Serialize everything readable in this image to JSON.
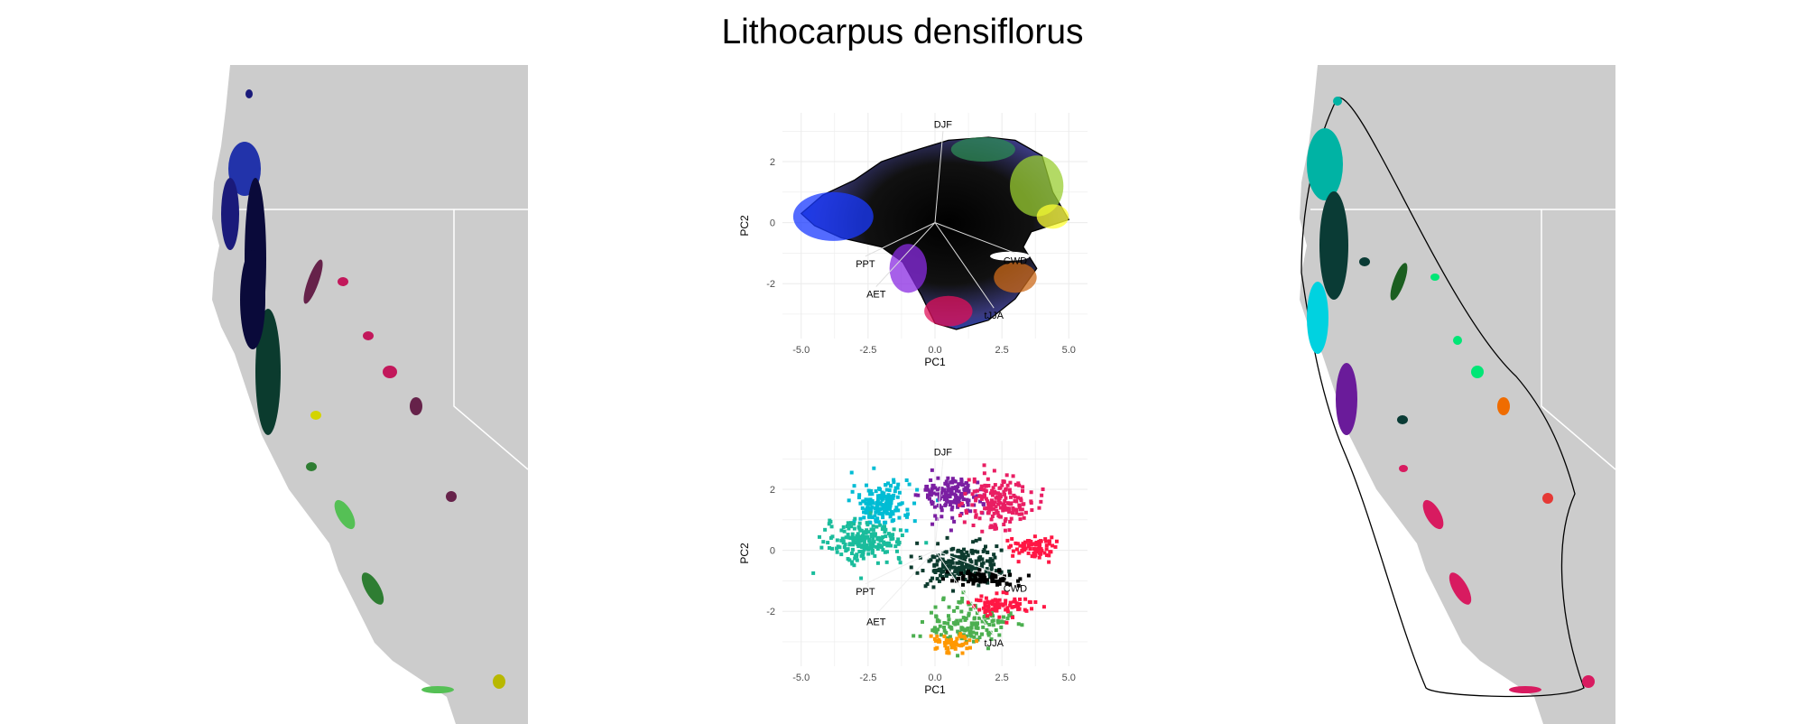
{
  "title": "Lithocarpus densiflorus",
  "colors": {
    "land": "#cccccc",
    "border": "#ffffff",
    "grid": "#ebebeb",
    "axis_text": "#4d4d4d"
  },
  "chart_data": [
    {
      "type": "map",
      "panel": "left-map",
      "description_series": "occurrence patches colored by climate PCA",
      "patches": [
        {
          "color": "#1a1a7a"
        },
        {
          "color": "#2233aa"
        },
        {
          "color": "#0a0a3a"
        },
        {
          "color": "#66224a"
        },
        {
          "color": "#c2185b"
        },
        {
          "color": "#0b3b2e"
        },
        {
          "color": "#d4d400"
        },
        {
          "color": "#2e7d32"
        },
        {
          "color": "#55c055"
        },
        {
          "color": "#b8b800"
        }
      ]
    },
    {
      "type": "biplot-hull",
      "panel": "pca-top",
      "xlabel": "PC1",
      "ylabel": "PC2",
      "xticks": [
        "-5.0",
        "-2.5",
        "0.0",
        "2.5",
        "5.0"
      ],
      "yticks": [
        "2",
        "0",
        "-2"
      ],
      "xlim": [
        -5.7,
        5.7
      ],
      "ylim": [
        -3.8,
        3.6
      ],
      "loadings": [
        {
          "label": "DJF",
          "x": 0.3,
          "y": 3.0
        },
        {
          "label": "CWD",
          "x": 3.0,
          "y": -1.0
        },
        {
          "label": "PPT",
          "x": -2.6,
          "y": -1.1
        },
        {
          "label": "AET",
          "x": -2.2,
          "y": -2.1
        },
        {
          "label": "tJJA",
          "x": 2.2,
          "y": -2.8
        }
      ]
    },
    {
      "type": "scatter",
      "panel": "pca-bottom",
      "xlabel": "PC1",
      "ylabel": "PC2",
      "xticks": [
        "-5.0",
        "-2.5",
        "0.0",
        "2.5",
        "5.0"
      ],
      "yticks": [
        "2",
        "0",
        "-2"
      ],
      "xlim": [
        -5.7,
        5.7
      ],
      "ylim": [
        -3.8,
        3.6
      ],
      "loadings": [
        {
          "label": "DJF",
          "x": 0.3,
          "y": 3.0
        },
        {
          "label": "CWD",
          "x": 3.0,
          "y": -1.0
        },
        {
          "label": "PPT",
          "x": -2.6,
          "y": -1.1
        },
        {
          "label": "AET",
          "x": -2.2,
          "y": -2.1
        },
        {
          "label": "tJJA",
          "x": 2.2,
          "y": -2.8
        }
      ],
      "series": [
        {
          "color": "#00bcd4"
        },
        {
          "color": "#1abc9c"
        },
        {
          "color": "#7b1fa2"
        },
        {
          "color": "#e91e63"
        },
        {
          "color": "#ff1744"
        },
        {
          "color": "#0d3b2e"
        },
        {
          "color": "#4caf50"
        },
        {
          "color": "#ff9800"
        }
      ]
    },
    {
      "type": "map",
      "panel": "right-map",
      "description_series": "range polygon with patches",
      "patches": [
        {
          "color": "#00b3a4"
        },
        {
          "color": "#0a3b35"
        },
        {
          "color": "#00d2e0"
        },
        {
          "color": "#6a1b9a"
        },
        {
          "color": "#1b5e20"
        },
        {
          "color": "#00e676"
        },
        {
          "color": "#ef6c00"
        },
        {
          "color": "#e53935"
        },
        {
          "color": "#d81b60"
        }
      ]
    }
  ]
}
